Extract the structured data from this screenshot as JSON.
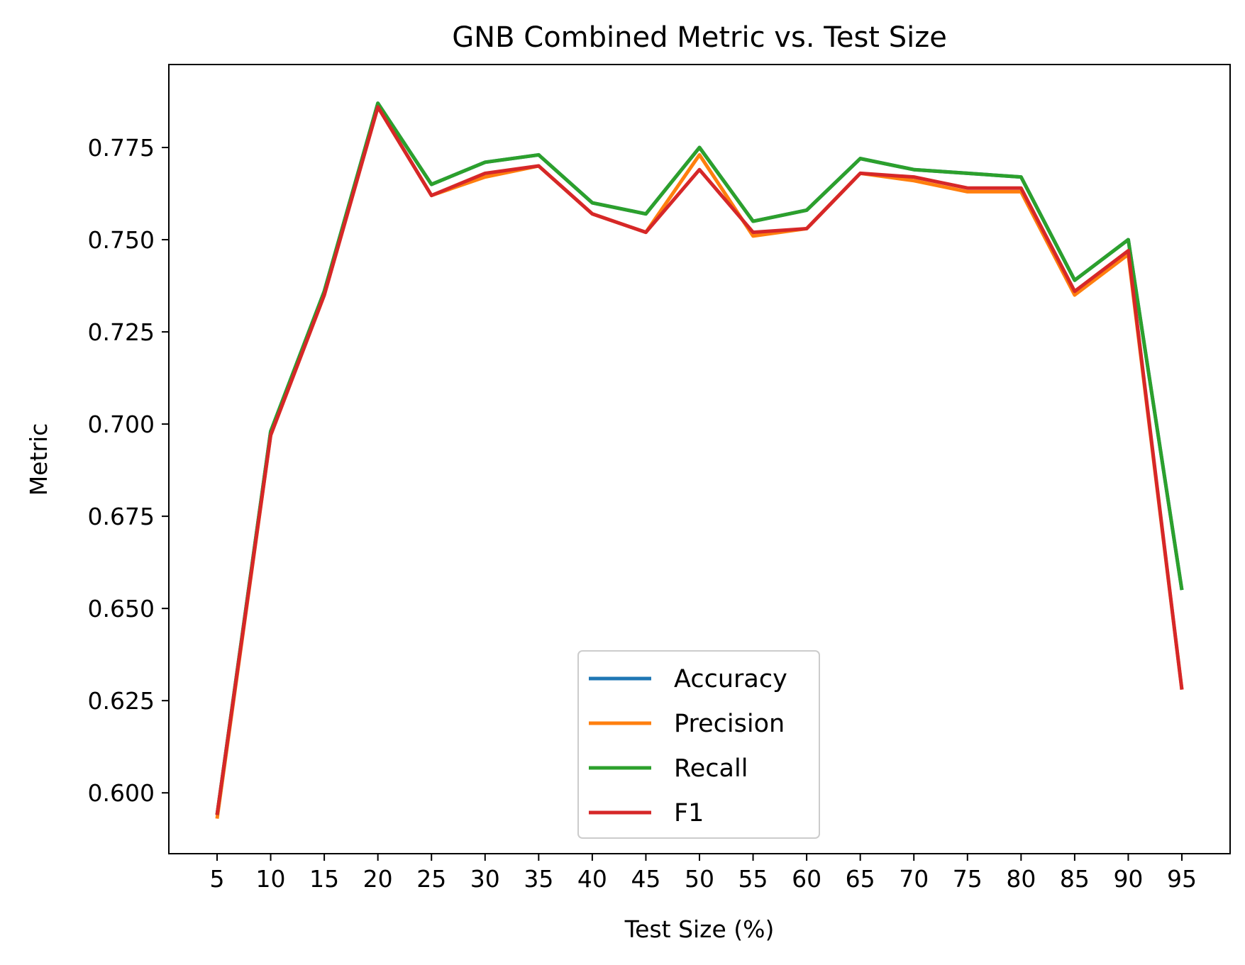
{
  "chart_data": {
    "type": "line",
    "title": "GNB Combined Metric vs. Test Size",
    "xlabel": "Test Size (%)",
    "ylabel": "Metric",
    "x": [
      5,
      10,
      15,
      20,
      25,
      30,
      35,
      40,
      45,
      50,
      55,
      60,
      65,
      70,
      75,
      80,
      85,
      90,
      95
    ],
    "xlim": [
      0.5,
      99.5
    ],
    "ylim": [
      0.5835,
      0.7975
    ],
    "yticks": [
      "0.600",
      "0.625",
      "0.650",
      "0.675",
      "0.700",
      "0.725",
      "0.750",
      "0.775"
    ],
    "ytick_values": [
      0.6,
      0.625,
      0.65,
      0.675,
      0.7,
      0.725,
      0.75,
      0.775
    ],
    "grid": false,
    "legend_position": "lower-center",
    "series": [
      {
        "name": "Accuracy",
        "color": "#1f77b4",
        "values": [
          0.594,
          0.698,
          0.736,
          0.787,
          0.765,
          0.771,
          0.773,
          0.76,
          0.757,
          0.775,
          0.755,
          0.758,
          0.772,
          0.769,
          0.768,
          0.767,
          0.739,
          0.75,
          0.655
        ]
      },
      {
        "name": "Precision",
        "color": "#ff7f0e",
        "values": [
          0.593,
          0.697,
          0.735,
          0.786,
          0.762,
          0.767,
          0.77,
          0.757,
          0.752,
          0.773,
          0.751,
          0.753,
          0.768,
          0.766,
          0.763,
          0.763,
          0.735,
          0.746,
          0.628
        ]
      },
      {
        "name": "Recall",
        "color": "#2ca02c",
        "values": [
          0.594,
          0.698,
          0.736,
          0.787,
          0.765,
          0.771,
          0.773,
          0.76,
          0.757,
          0.775,
          0.755,
          0.758,
          0.772,
          0.769,
          0.768,
          0.767,
          0.739,
          0.75,
          0.655
        ]
      },
      {
        "name": "F1",
        "color": "#d62728",
        "values": [
          0.594,
          0.697,
          0.735,
          0.786,
          0.762,
          0.768,
          0.77,
          0.757,
          0.752,
          0.769,
          0.752,
          0.753,
          0.768,
          0.767,
          0.764,
          0.764,
          0.736,
          0.747,
          0.628
        ]
      }
    ]
  }
}
